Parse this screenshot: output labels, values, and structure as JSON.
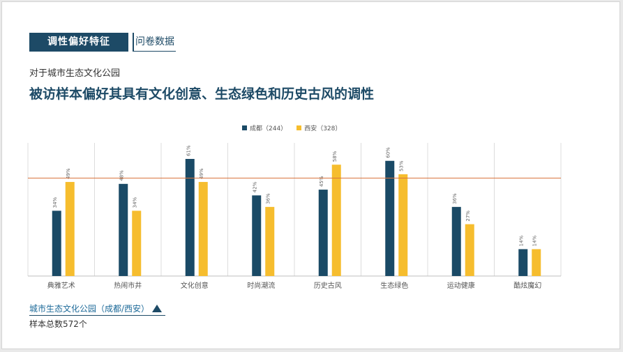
{
  "header": {
    "tab_primary": "调性偏好特征",
    "tab_secondary": "问卷数据"
  },
  "subtitle": "对于城市生态文化公园",
  "title": "被访样本偏好其具有文化创意、生态绿色和历史古风的调性",
  "footer": {
    "label": "城市生态文化公园（成都/西安）",
    "sample": "样本总数572个"
  },
  "colors": {
    "series_a": "#1a4a66",
    "series_b": "#f6bd2e",
    "reference_line": "#d9733c",
    "grid": "#dcdcdc"
  },
  "chart_data": {
    "type": "bar",
    "categories": [
      "典雅艺术",
      "热闹市井",
      "文化创意",
      "时尚潮流",
      "历史古风",
      "生态绿色",
      "运动健康",
      "酷炫魔幻"
    ],
    "series": [
      {
        "name": "成都（244）",
        "values": [
          34,
          48,
          61,
          42,
          45,
          60,
          36,
          14
        ]
      },
      {
        "name": "西安（328）",
        "values": [
          49,
          34,
          49,
          36,
          58,
          53,
          27,
          14
        ]
      }
    ],
    "value_suffix": "%",
    "ylim": [
      0,
      61
    ],
    "reference_value": 51,
    "legend_position": "top"
  }
}
